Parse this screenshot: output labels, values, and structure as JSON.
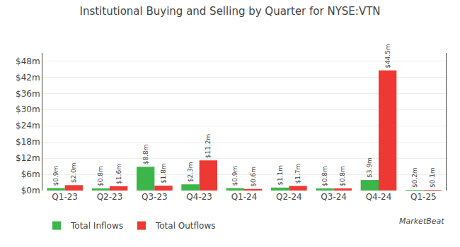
{
  "chart_data": {
    "type": "bar",
    "title": "Institutional Buying and Selling by Quarter for NYSE:VTN",
    "categories": [
      "Q1-23",
      "Q2-23",
      "Q3-23",
      "Q4-23",
      "Q1-24",
      "Q2-24",
      "Q3-24",
      "Q4-24",
      "Q1-25"
    ],
    "series": [
      {
        "name": "Total Inflows",
        "color": "#3cb54a",
        "values": [
          0.9,
          0.8,
          8.8,
          2.3,
          0.9,
          1.1,
          0.8,
          3.9,
          0.2
        ],
        "value_labels": [
          "$0.9m",
          "$0.8m",
          "$8.8m",
          "$2.3m",
          "$0.9m",
          "$1.1m",
          "$0.8m",
          "$3.9m",
          "$0.2m"
        ]
      },
      {
        "name": "Total Outflows",
        "color": "#ed3833",
        "values": [
          2.0,
          1.6,
          1.8,
          11.2,
          0.6,
          1.7,
          0.8,
          44.5,
          0.1
        ],
        "value_labels": [
          "$2.0m",
          "$1.6m",
          "$1.8m",
          "$11.2m",
          "$0.6m",
          "$1.7m",
          "$0.8m",
          "$44.5m",
          "$0.1m"
        ]
      }
    ],
    "ylim": [
      0,
      51
    ],
    "yticks": [
      {
        "value": 0,
        "label": "$0m"
      },
      {
        "value": 6,
        "label": "$6m"
      },
      {
        "value": 12,
        "label": "$12m"
      },
      {
        "value": 18,
        "label": "$18m"
      },
      {
        "value": 24,
        "label": "$24m"
      },
      {
        "value": 30,
        "label": "$30m"
      },
      {
        "value": 36,
        "label": "$36m"
      },
      {
        "value": 42,
        "label": "$42m"
      },
      {
        "value": 48,
        "label": "$48m"
      }
    ],
    "grid": true,
    "data_labels": true,
    "legend": "lower left",
    "annotations": [
      "MarketBeat"
    ]
  }
}
